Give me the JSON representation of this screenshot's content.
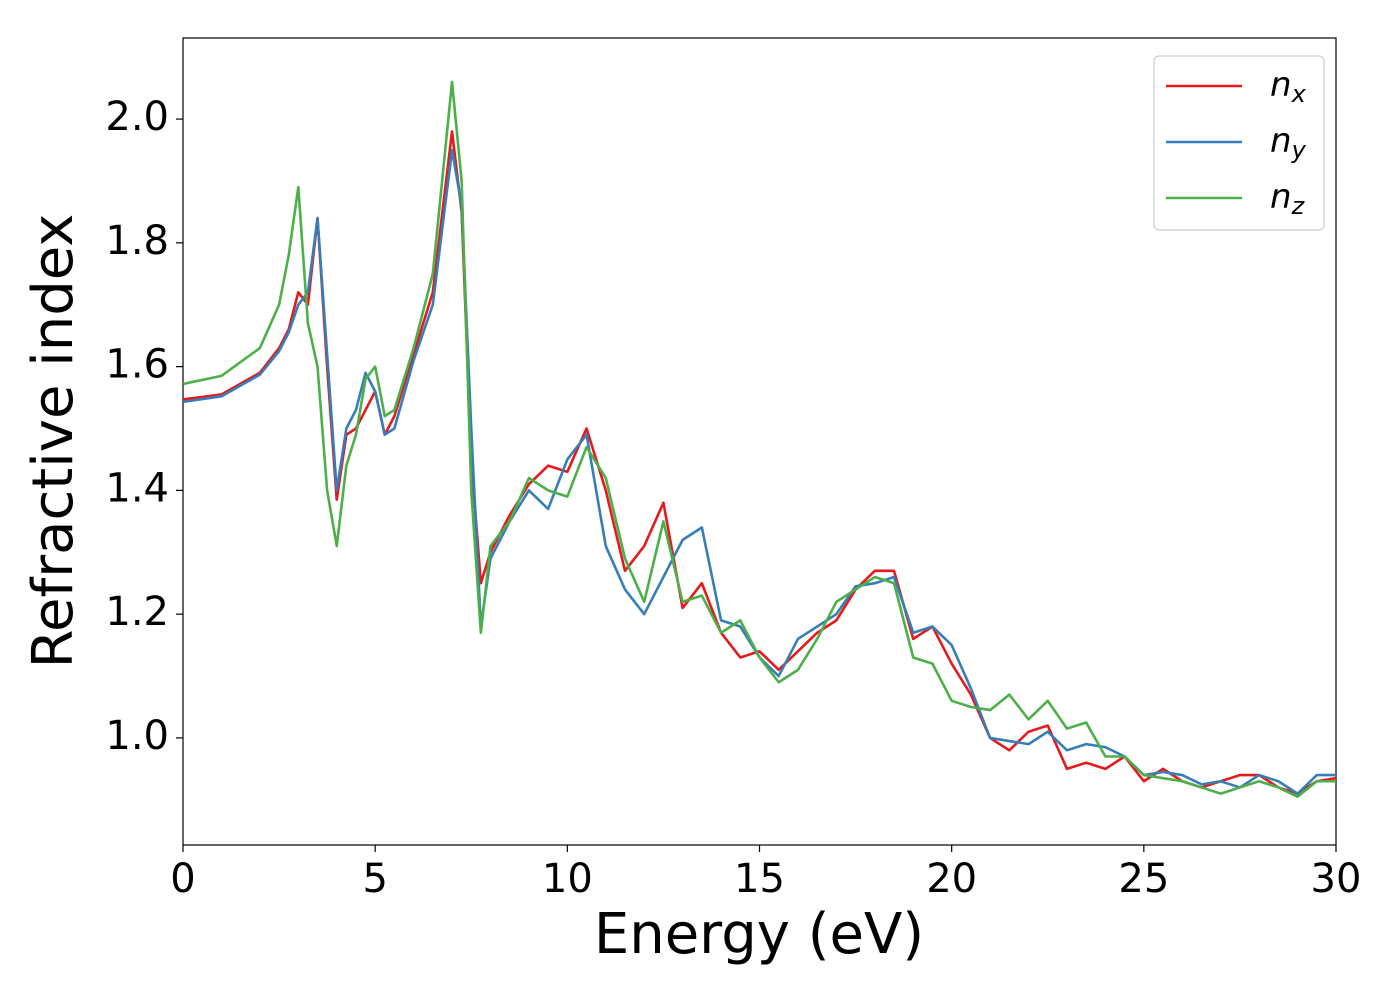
{
  "chart_data": {
    "type": "line",
    "xlabel": "Energy (eV)",
    "ylabel": "Refractive index",
    "x": [
      0,
      1,
      2,
      2.5,
      2.75,
      3,
      3.25,
      3.5,
      3.75,
      4,
      4.25,
      4.5,
      4.75,
      5,
      5.25,
      5.5,
      6,
      6.5,
      7,
      7.25,
      7.5,
      7.75,
      8,
      8.5,
      9,
      9.5,
      10,
      10.5,
      11,
      11.5,
      12,
      12.5,
      13,
      13.5,
      14,
      14.5,
      15,
      15.5,
      16,
      16.5,
      17,
      17.5,
      18,
      18.5,
      19,
      19.5,
      20,
      20.5,
      21,
      21.5,
      22,
      22.5,
      23,
      23.5,
      24,
      24.5,
      25,
      25.5,
      26,
      26.5,
      27,
      27.5,
      28,
      28.5,
      29,
      29.5,
      30
    ],
    "series": [
      {
        "name": "nx",
        "color": "#e41a1c",
        "values": [
          1.547,
          1.555,
          1.59,
          1.63,
          1.66,
          1.72,
          1.7,
          1.84,
          1.6,
          1.385,
          1.49,
          1.5,
          1.53,
          1.56,
          1.49,
          1.52,
          1.62,
          1.72,
          1.98,
          1.85,
          1.45,
          1.25,
          1.3,
          1.36,
          1.41,
          1.44,
          1.43,
          1.5,
          1.4,
          1.27,
          1.31,
          1.38,
          1.21,
          1.25,
          1.17,
          1.13,
          1.14,
          1.11,
          1.14,
          1.17,
          1.19,
          1.24,
          1.27,
          1.27,
          1.16,
          1.18,
          1.12,
          1.07,
          1.0,
          0.98,
          1.01,
          1.02,
          0.95,
          0.96,
          0.95,
          0.97,
          0.93,
          0.95,
          0.93,
          0.92,
          0.93,
          0.94,
          0.94,
          0.92,
          0.91,
          0.93,
          0.935
        ]
      },
      {
        "name": "ny",
        "color": "#377eb8",
        "values": [
          1.543,
          1.552,
          1.587,
          1.625,
          1.655,
          1.7,
          1.72,
          1.84,
          1.62,
          1.4,
          1.5,
          1.53,
          1.59,
          1.56,
          1.49,
          1.5,
          1.61,
          1.7,
          1.95,
          1.86,
          1.5,
          1.18,
          1.29,
          1.35,
          1.4,
          1.37,
          1.45,
          1.49,
          1.31,
          1.24,
          1.2,
          1.26,
          1.32,
          1.34,
          1.19,
          1.18,
          1.13,
          1.1,
          1.16,
          1.18,
          1.2,
          1.245,
          1.25,
          1.26,
          1.17,
          1.18,
          1.15,
          1.08,
          1.0,
          0.995,
          0.99,
          1.01,
          0.98,
          0.99,
          0.985,
          0.97,
          0.94,
          0.945,
          0.94,
          0.925,
          0.93,
          0.92,
          0.94,
          0.93,
          0.91,
          0.94,
          0.94
        ]
      },
      {
        "name": "nz",
        "color": "#4daf4a",
        "values": [
          1.572,
          1.585,
          1.63,
          1.7,
          1.78,
          1.89,
          1.67,
          1.6,
          1.4,
          1.31,
          1.44,
          1.49,
          1.58,
          1.6,
          1.52,
          1.53,
          1.63,
          1.75,
          2.06,
          1.9,
          1.4,
          1.17,
          1.31,
          1.35,
          1.42,
          1.4,
          1.39,
          1.47,
          1.42,
          1.29,
          1.22,
          1.35,
          1.22,
          1.23,
          1.17,
          1.19,
          1.13,
          1.09,
          1.11,
          1.16,
          1.22,
          1.24,
          1.26,
          1.25,
          1.13,
          1.12,
          1.06,
          1.05,
          1.045,
          1.07,
          1.03,
          1.06,
          1.015,
          1.025,
          0.97,
          0.97,
          0.94,
          0.935,
          0.93,
          0.92,
          0.91,
          0.92,
          0.93,
          0.92,
          0.905,
          0.93,
          0.93
        ]
      }
    ],
    "xlim": [
      0,
      30
    ],
    "xticks": [
      0,
      5,
      10,
      15,
      20,
      25,
      30
    ],
    "ylim": [
      0.827,
      2.131
    ],
    "yticks": [
      {
        "value": 1,
        "label": "1.0"
      },
      1.2,
      1.4,
      1.6,
      1.8,
      {
        "value": 2,
        "label": "2.0"
      }
    ],
    "legend": "upper right",
    "grid": false
  }
}
